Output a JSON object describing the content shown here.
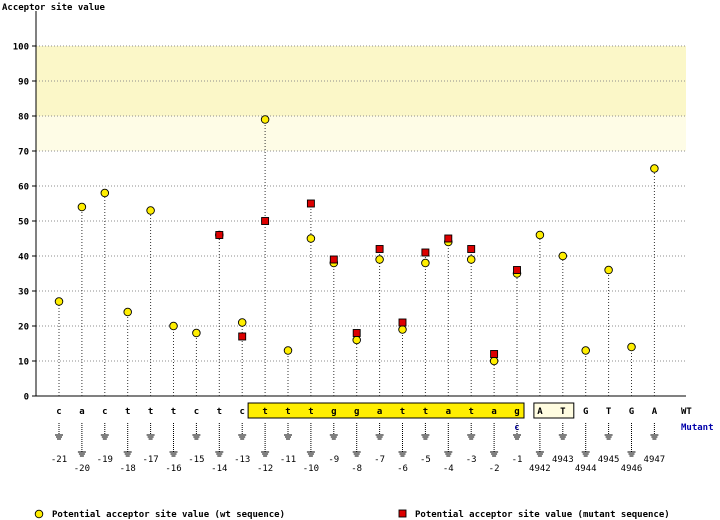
{
  "chart_data": {
    "type": "scatter",
    "ylabel": "Acceptor site value",
    "ylim": [
      0,
      100
    ],
    "yticks": [
      0,
      10,
      20,
      30,
      40,
      50,
      60,
      70,
      80,
      90,
      100
    ],
    "grid": true,
    "highlight_band": [
      70,
      100
    ],
    "positions": [
      "-21",
      "-20",
      "-19",
      "-18",
      "-17",
      "-16",
      "-15",
      "-14",
      "-13",
      "-12",
      "-11",
      "-10",
      "-9",
      "-8",
      "-7",
      "-6",
      "-5",
      "-4",
      "-3",
      "-2",
      "-1",
      "4942",
      "4943",
      "4944",
      "4945",
      "4946",
      "4947"
    ],
    "wt_sequence": [
      "c",
      "a",
      "c",
      "t",
      "t",
      "t",
      "c",
      "t",
      "c",
      "t",
      "t",
      "t",
      "g",
      "g",
      "a",
      "t",
      "t",
      "a",
      "t",
      "a",
      "g",
      "A",
      "T",
      "G",
      "T",
      "G",
      "A"
    ],
    "highlighted_sequence_range": [
      9,
      20
    ],
    "boxed_exon_range": [
      21,
      22
    ],
    "wt_label": "WT",
    "mutant_label": "Mutant",
    "mutant_sequence": [
      null,
      null,
      null,
      null,
      null,
      null,
      null,
      null,
      null,
      null,
      null,
      null,
      null,
      null,
      null,
      null,
      null,
      null,
      null,
      null,
      "c",
      null,
      null,
      null,
      null,
      null,
      null
    ],
    "series": [
      {
        "name": "Potential acceptor site value (wt sequence)",
        "marker": "circle",
        "color": "#ffee00",
        "values": [
          27,
          54,
          58,
          24,
          53,
          20,
          18,
          46,
          21,
          79,
          13,
          45,
          38,
          16,
          39,
          19,
          38,
          44,
          39,
          10,
          35,
          46,
          40,
          13,
          36,
          14,
          65
        ]
      },
      {
        "name": "Potential acceptor site value (mutant sequence)",
        "marker": "square",
        "color": "#dd0000",
        "values": [
          null,
          null,
          null,
          null,
          null,
          null,
          null,
          46,
          17,
          50,
          null,
          55,
          39,
          18,
          42,
          21,
          41,
          45,
          42,
          12,
          36,
          null,
          null,
          null,
          null,
          null,
          null
        ]
      }
    ]
  },
  "legend": {
    "wt": "Potential acceptor site value (wt sequence)",
    "mutant": "Potential acceptor site value (mutant sequence)"
  }
}
